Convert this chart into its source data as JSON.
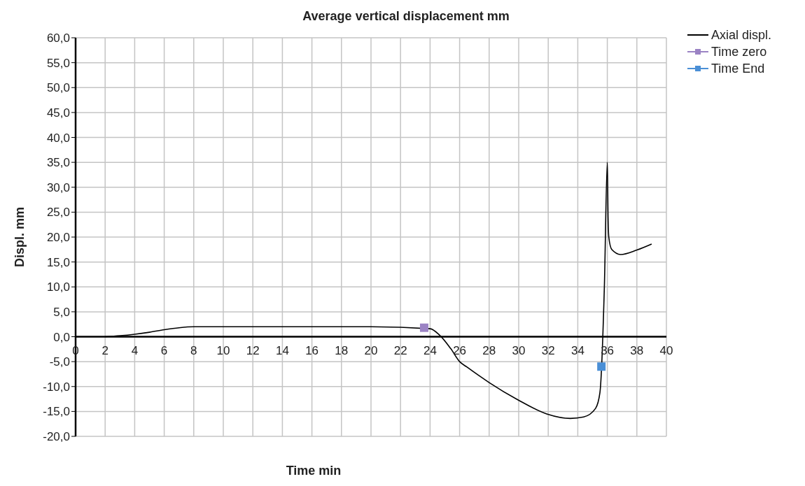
{
  "chart_data": {
    "type": "line",
    "title": "Average vertical displacement mm",
    "xlabel": "Time min",
    "ylabel": "Displ. mm",
    "xlim": [
      0,
      40
    ],
    "xticks": [
      0,
      2,
      4,
      6,
      8,
      10,
      12,
      14,
      16,
      18,
      20,
      22,
      24,
      26,
      28,
      30,
      32,
      34,
      36,
      38,
      40
    ],
    "ylim": [
      -20,
      60
    ],
    "yticks": [
      {
        "value": -20,
        "label": "-20,0"
      },
      {
        "value": -15,
        "label": "-15,0"
      },
      {
        "value": -10,
        "label": "-10,0"
      },
      {
        "value": -5,
        "label": "-5,0"
      },
      {
        "value": 0,
        "label": "0,0"
      },
      {
        "value": 5,
        "label": "5,0"
      },
      {
        "value": 10,
        "label": "10,0"
      },
      {
        "value": 15,
        "label": "15,0"
      },
      {
        "value": 20,
        "label": "20,0"
      },
      {
        "value": 25,
        "label": "25,0"
      },
      {
        "value": 30,
        "label": "30,0"
      },
      {
        "value": 35,
        "label": "35,0"
      },
      {
        "value": 40,
        "label": "40,0"
      },
      {
        "value": 45,
        "label": "45,0"
      },
      {
        "value": 50,
        "label": "50,0"
      },
      {
        "value": 55,
        "label": "55,0"
      },
      {
        "value": 60,
        "label": "60,0"
      }
    ],
    "grid": true,
    "legend": "top right",
    "line_style": "solid",
    "series": [
      {
        "name": "Axial displ.",
        "color": "#000000",
        "marker": "none",
        "x": [
          2,
          3,
          4,
          5,
          6,
          7,
          8,
          12,
          16,
          20,
          24,
          24.65,
          25.4,
          26,
          26.5,
          28,
          29.9,
          31.9,
          33.5,
          34.4,
          35.2,
          35.5,
          35.8,
          36,
          36.05,
          36.1,
          36.3,
          36.9,
          38,
          39
        ],
        "values": [
          0,
          0.2,
          0.5,
          0.9,
          1.4,
          1.8,
          2,
          2,
          2,
          2,
          1.6,
          0.3,
          -2.4,
          -5,
          -6.1,
          -9.2,
          -12.6,
          -15.5,
          -16.4,
          -16.1,
          -14.4,
          -11.2,
          10,
          35,
          24,
          20,
          17.5,
          16.5,
          17.4,
          18.6
        ]
      },
      {
        "name": "Time zero",
        "color": "#9b83c4",
        "marker": "square",
        "x": [
          23.6
        ],
        "values": [
          1.8
        ]
      },
      {
        "name": "Time End",
        "color": "#4a8fd6",
        "marker": "square",
        "x": [
          35.6
        ],
        "values": [
          -6
        ]
      }
    ]
  }
}
